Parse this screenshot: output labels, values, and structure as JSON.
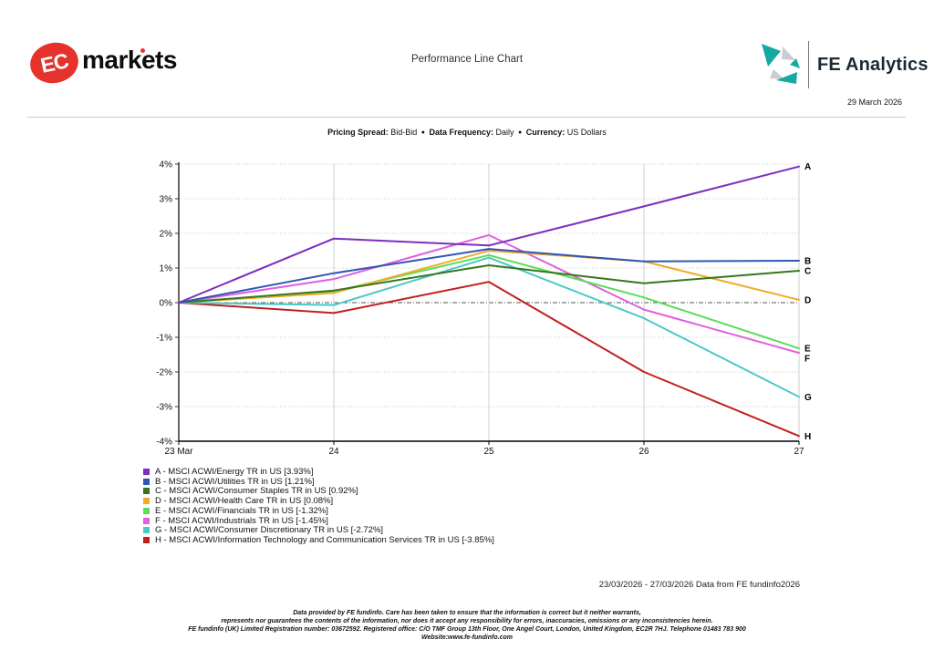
{
  "header": {
    "logo_ec": {
      "badge": "EC",
      "wordmark": "markets",
      "brand_color": "#e5332b"
    },
    "title": "Performance Line Chart",
    "logo_fe": {
      "text": "FE Analytics",
      "teal": "#16a9a4",
      "gray": "#c9cdd1"
    },
    "date": "29 March 2026"
  },
  "subtitle": {
    "pricing_label": "Pricing Spread:",
    "pricing_value": " Bid-Bid",
    "frequency_label": "Data Frequency:",
    "frequency_value": " Daily",
    "currency_label": "Currency:",
    "currency_value": " US Dollars",
    "bullet": "●"
  },
  "chart_data": {
    "type": "line",
    "x": [
      "23 Mar",
      "24",
      "25",
      "26",
      "27"
    ],
    "ylim": [
      -4,
      4
    ],
    "yticks": [
      4,
      3,
      2,
      1,
      0,
      -1,
      -2,
      -3,
      -4
    ],
    "ytick_suffix": "%",
    "grid": true,
    "legend_position": "bottom-left",
    "series": [
      {
        "letter": "A",
        "legend_label": "A - MSCI ACWI/Energy TR in US [3.93%]",
        "color": "#7b2ebe",
        "values": [
          0,
          1.85,
          1.65,
          2.78,
          3.93
        ]
      },
      {
        "letter": "B",
        "legend_label": "B - MSCI ACWI/Utilities TR in US [1.21%]",
        "color": "#2f55b4",
        "values": [
          0,
          0.85,
          1.55,
          1.19,
          1.21
        ]
      },
      {
        "letter": "C",
        "legend_label": "C - MSCI ACWI/Consumer Staples TR in US [0.92%]",
        "color": "#37761f",
        "values": [
          0,
          0.35,
          1.08,
          0.56,
          0.92
        ]
      },
      {
        "letter": "D",
        "legend_label": "D - MSCI ACWI/Health Care TR in US [0.08%]",
        "color": "#f0ac28",
        "values": [
          0,
          0.28,
          1.5,
          1.19,
          0.08
        ]
      },
      {
        "letter": "E",
        "legend_label": "E - MSCI ACWI/Financials TR in US [-1.32%]",
        "color": "#5bdc5b",
        "values": [
          0,
          0.32,
          1.37,
          0.15,
          -1.32
        ]
      },
      {
        "letter": "F",
        "legend_label": "F - MSCI ACWI/Industrials TR in US [-1.45%]",
        "color": "#e15fe1",
        "values": [
          0,
          0.68,
          1.95,
          -0.2,
          -1.45
        ]
      },
      {
        "letter": "G",
        "legend_label": "G - MSCI ACWI/Consumer Discretionary TR in US [-2.72%]",
        "color": "#4bc8c8",
        "values": [
          0,
          -0.07,
          1.3,
          -0.45,
          -2.72
        ]
      },
      {
        "letter": "H",
        "legend_label": "H - MSCI ACWI/Information Technology and Communication Services TR in US [-3.85%]",
        "color": "#c21f1f",
        "values": [
          0,
          -0.3,
          0.6,
          -2.0,
          -3.85
        ]
      }
    ]
  },
  "footer": {
    "range_text": "23/03/2026 - 27/03/2026 Data from FE fundinfo2026",
    "disclaimer_lines": [
      "Data provided by FE fundinfo. Care has been taken to ensure that the information is correct but it neither warrants,",
      "represents nor guarantees the contents of the information, nor does it accept any responsibility for errors, inaccuracies, omissions or any inconsistencies herein.",
      "FE fundinfo (UK) Limited Registration number: 03672592. Registered office: C/O TMF Group 13th Floor, One Angel Court, London, United Kingdom, EC2R 7HJ. Telephone 01483 783 900",
      "Website:www.fe-fundinfo.com"
    ]
  }
}
